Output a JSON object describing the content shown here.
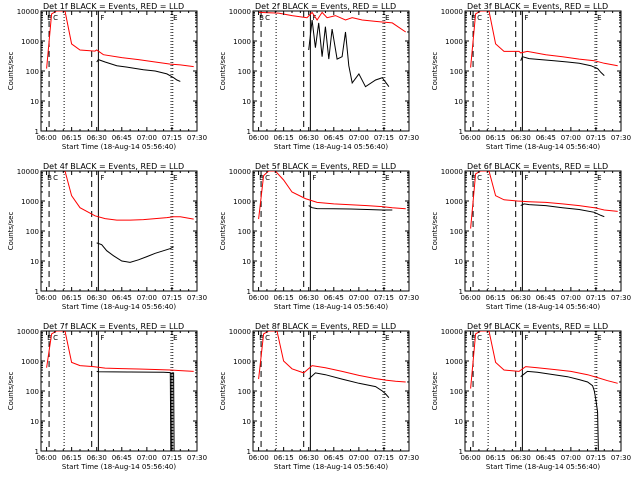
{
  "chart_data": {
    "type": "line",
    "title_suffix": "BLACK = Events, RED = LLD",
    "xlabel": "Start Time (18-Aug-14 05:56:40)",
    "ylabel": "Counts/sec",
    "x_ticks": [
      "06:00",
      "06:15",
      "06:30",
      "06:45",
      "07:00",
      "07:15",
      "07:30"
    ],
    "y_ticks": [
      "1",
      "10",
      "100",
      "1000",
      "10000"
    ],
    "y_scale": "log",
    "ylim": [
      1,
      10000
    ],
    "grid": false,
    "legend": "none",
    "colors": {
      "events": "#000000",
      "lld": "#ff0000"
    },
    "interval_markers": [
      "B",
      "C",
      "F",
      "E"
    ],
    "panels": [
      {
        "title": "Det 1f",
        "series": [
          {
            "key": "lld",
            "values": [
              [
                0,
                120
              ],
              [
                3,
                8000
              ],
              [
                6,
                10000
              ],
              [
                11,
                10000
              ],
              [
                15,
                800
              ],
              [
                20,
                500
              ],
              [
                29,
                460
              ],
              [
                30,
                500
              ],
              [
                34,
                350
              ],
              [
                45,
                280
              ],
              [
                55,
                240
              ],
              [
                65,
                200
              ],
              [
                74,
                170
              ],
              [
                80,
                160
              ],
              [
                88,
                140
              ]
            ]
          },
          {
            "key": "events",
            "values": [
              [
                30,
                200
              ],
              [
                31,
                240
              ],
              [
                35,
                200
              ],
              [
                42,
                150
              ],
              [
                50,
                130
              ],
              [
                58,
                110
              ],
              [
                65,
                100
              ],
              [
                72,
                80
              ],
              [
                76,
                60
              ],
              [
                78,
                50
              ],
              [
                80,
                45
              ]
            ]
          }
        ]
      },
      {
        "title": "Det 2f",
        "series": [
          {
            "key": "lld",
            "values": [
              [
                0,
                9000
              ],
              [
                12,
                8500
              ],
              [
                20,
                7000
              ],
              [
                29,
                6000
              ],
              [
                32,
                9000
              ],
              [
                35,
                5000
              ],
              [
                38,
                9000
              ],
              [
                41,
                6000
              ],
              [
                46,
                7000
              ],
              [
                52,
                5000
              ],
              [
                56,
                6000
              ],
              [
                62,
                5000
              ],
              [
                70,
                4500
              ],
              [
                80,
                4000
              ],
              [
                88,
                2000
              ]
            ]
          },
          {
            "key": "events",
            "values": [
              [
                30,
                500
              ],
              [
                32,
                5000
              ],
              [
                34,
                600
              ],
              [
                36,
                4000
              ],
              [
                38,
                300
              ],
              [
                40,
                3000
              ],
              [
                42,
                250
              ],
              [
                44,
                2500
              ],
              [
                47,
                250
              ],
              [
                50,
                300
              ],
              [
                52,
                2000
              ],
              [
                54,
                150
              ],
              [
                56,
                40
              ],
              [
                60,
                80
              ],
              [
                64,
                30
              ],
              [
                70,
                50
              ],
              [
                74,
                60
              ],
              [
                78,
                30
              ]
            ]
          }
        ]
      },
      {
        "title": "Det 3f",
        "series": [
          {
            "key": "lld",
            "values": [
              [
                0,
                130
              ],
              [
                3,
                8000
              ],
              [
                6,
                10000
              ],
              [
                11,
                10000
              ],
              [
                15,
                800
              ],
              [
                20,
                450
              ],
              [
                29,
                450
              ],
              [
                30,
                400
              ],
              [
                34,
                450
              ],
              [
                45,
                350
              ],
              [
                55,
                300
              ],
              [
                65,
                250
              ],
              [
                74,
                220
              ],
              [
                80,
                180
              ],
              [
                88,
                150
              ]
            ]
          },
          {
            "key": "events",
            "values": [
              [
                30,
                220
              ],
              [
                31,
                300
              ],
              [
                35,
                260
              ],
              [
                42,
                240
              ],
              [
                50,
                220
              ],
              [
                58,
                200
              ],
              [
                65,
                180
              ],
              [
                72,
                150
              ],
              [
                76,
                120
              ],
              [
                78,
                90
              ],
              [
                80,
                70
              ]
            ]
          }
        ]
      },
      {
        "title": "Det 4f",
        "series": [
          {
            "key": "lld",
            "values": [
              [
                11,
                10000
              ],
              [
                15,
                1500
              ],
              [
                20,
                600
              ],
              [
                29,
                320
              ],
              [
                35,
                260
              ],
              [
                42,
                230
              ],
              [
                50,
                230
              ],
              [
                58,
                240
              ],
              [
                65,
                260
              ],
              [
                72,
                280
              ],
              [
                76,
                300
              ],
              [
                80,
                300
              ],
              [
                88,
                250
              ]
            ]
          },
          {
            "key": "events",
            "values": [
              [
                30,
                40
              ],
              [
                33,
                35
              ],
              [
                36,
                22
              ],
              [
                40,
                15
              ],
              [
                45,
                10
              ],
              [
                50,
                9
              ],
              [
                55,
                11
              ],
              [
                60,
                14
              ],
              [
                65,
                18
              ],
              [
                70,
                22
              ],
              [
                74,
                26
              ],
              [
                76,
                30
              ]
            ]
          }
        ]
      },
      {
        "title": "Det 5f",
        "series": [
          {
            "key": "lld",
            "values": [
              [
                0,
                250
              ],
              [
                3,
                7000
              ],
              [
                6,
                10000
              ],
              [
                10,
                10000
              ],
              [
                15,
                5000
              ],
              [
                20,
                2000
              ],
              [
                28,
                1200
              ],
              [
                35,
                900
              ],
              [
                45,
                800
              ],
              [
                55,
                750
              ],
              [
                65,
                700
              ],
              [
                74,
                650
              ],
              [
                80,
                600
              ],
              [
                88,
                550
              ]
            ]
          },
          {
            "key": "events",
            "values": [
              [
                30,
                700
              ],
              [
                32,
                600
              ],
              [
                35,
                560
              ],
              [
                45,
                550
              ],
              [
                55,
                540
              ],
              [
                65,
                520
              ],
              [
                74,
                500
              ],
              [
                80,
                500
              ]
            ]
          }
        ]
      },
      {
        "title": "Det 6f",
        "series": [
          {
            "key": "lld",
            "values": [
              [
                0,
                120
              ],
              [
                3,
                8000
              ],
              [
                6,
                10000
              ],
              [
                11,
                10000
              ],
              [
                15,
                1500
              ],
              [
                20,
                1100
              ],
              [
                28,
                1000
              ],
              [
                35,
                950
              ],
              [
                45,
                900
              ],
              [
                55,
                800
              ],
              [
                65,
                700
              ],
              [
                74,
                600
              ],
              [
                80,
                500
              ],
              [
                88,
                450
              ]
            ]
          },
          {
            "key": "events",
            "values": [
              [
                30,
                700
              ],
              [
                32,
                800
              ],
              [
                35,
                760
              ],
              [
                45,
                700
              ],
              [
                55,
                600
              ],
              [
                65,
                520
              ],
              [
                74,
                420
              ],
              [
                78,
                330
              ],
              [
                80,
                300
              ]
            ]
          }
        ]
      },
      {
        "title": "Det 7f",
        "series": [
          {
            "key": "lld",
            "values": [
              [
                0,
                600
              ],
              [
                3,
                8000
              ],
              [
                6,
                10000
              ],
              [
                11,
                10000
              ],
              [
                15,
                900
              ],
              [
                20,
                700
              ],
              [
                28,
                650
              ],
              [
                35,
                580
              ],
              [
                45,
                560
              ],
              [
                55,
                540
              ],
              [
                65,
                520
              ],
              [
                74,
                500
              ],
              [
                80,
                480
              ],
              [
                88,
                450
              ]
            ]
          },
          {
            "key": "events",
            "values": [
              [
                30,
                450
              ],
              [
                31,
                440
              ],
              [
                50,
                430
              ],
              [
                70,
                420
              ],
              [
                74,
                410
              ],
              [
                74.3,
                1
              ],
              [
                75,
                1
              ],
              [
                75,
                400
              ],
              [
                76,
                400
              ],
              [
                76.3,
                1
              ]
            ]
          }
        ]
      },
      {
        "title": "Det 8f",
        "series": [
          {
            "key": "lld",
            "values": [
              [
                0,
                250
              ],
              [
                3,
                8000
              ],
              [
                6,
                10000
              ],
              [
                11,
                10000
              ],
              [
                15,
                1000
              ],
              [
                20,
                550
              ],
              [
                27,
                400
              ],
              [
                32,
                700
              ],
              [
                40,
                600
              ],
              [
                50,
                450
              ],
              [
                60,
                330
              ],
              [
                70,
                260
              ],
              [
                76,
                230
              ],
              [
                82,
                210
              ],
              [
                88,
                200
              ]
            ]
          },
          {
            "key": "events",
            "values": [
              [
                30,
                250
              ],
              [
                34,
                400
              ],
              [
                40,
                350
              ],
              [
                50,
                250
              ],
              [
                60,
                180
              ],
              [
                70,
                140
              ],
              [
                74,
                100
              ],
              [
                76,
                80
              ],
              [
                78,
                60
              ]
            ]
          }
        ]
      },
      {
        "title": "Det 9f",
        "series": [
          {
            "key": "lld",
            "values": [
              [
                0,
                120
              ],
              [
                3,
                8000
              ],
              [
                6,
                10000
              ],
              [
                11,
                10000
              ],
              [
                15,
                900
              ],
              [
                20,
                500
              ],
              [
                29,
                450
              ],
              [
                33,
                650
              ],
              [
                40,
                600
              ],
              [
                50,
                520
              ],
              [
                60,
                450
              ],
              [
                70,
                350
              ],
              [
                76,
                280
              ],
              [
                82,
                220
              ],
              [
                88,
                180
              ]
            ]
          },
          {
            "key": "events",
            "values": [
              [
                30,
                300
              ],
              [
                34,
                450
              ],
              [
                40,
                420
              ],
              [
                50,
                350
              ],
              [
                58,
                300
              ],
              [
                65,
                240
              ],
              [
                70,
                200
              ],
              [
                73,
                150
              ],
              [
                74,
                100
              ],
              [
                75,
                50
              ],
              [
                76,
                20
              ],
              [
                76.5,
                1
              ]
            ]
          }
        ]
      }
    ]
  }
}
